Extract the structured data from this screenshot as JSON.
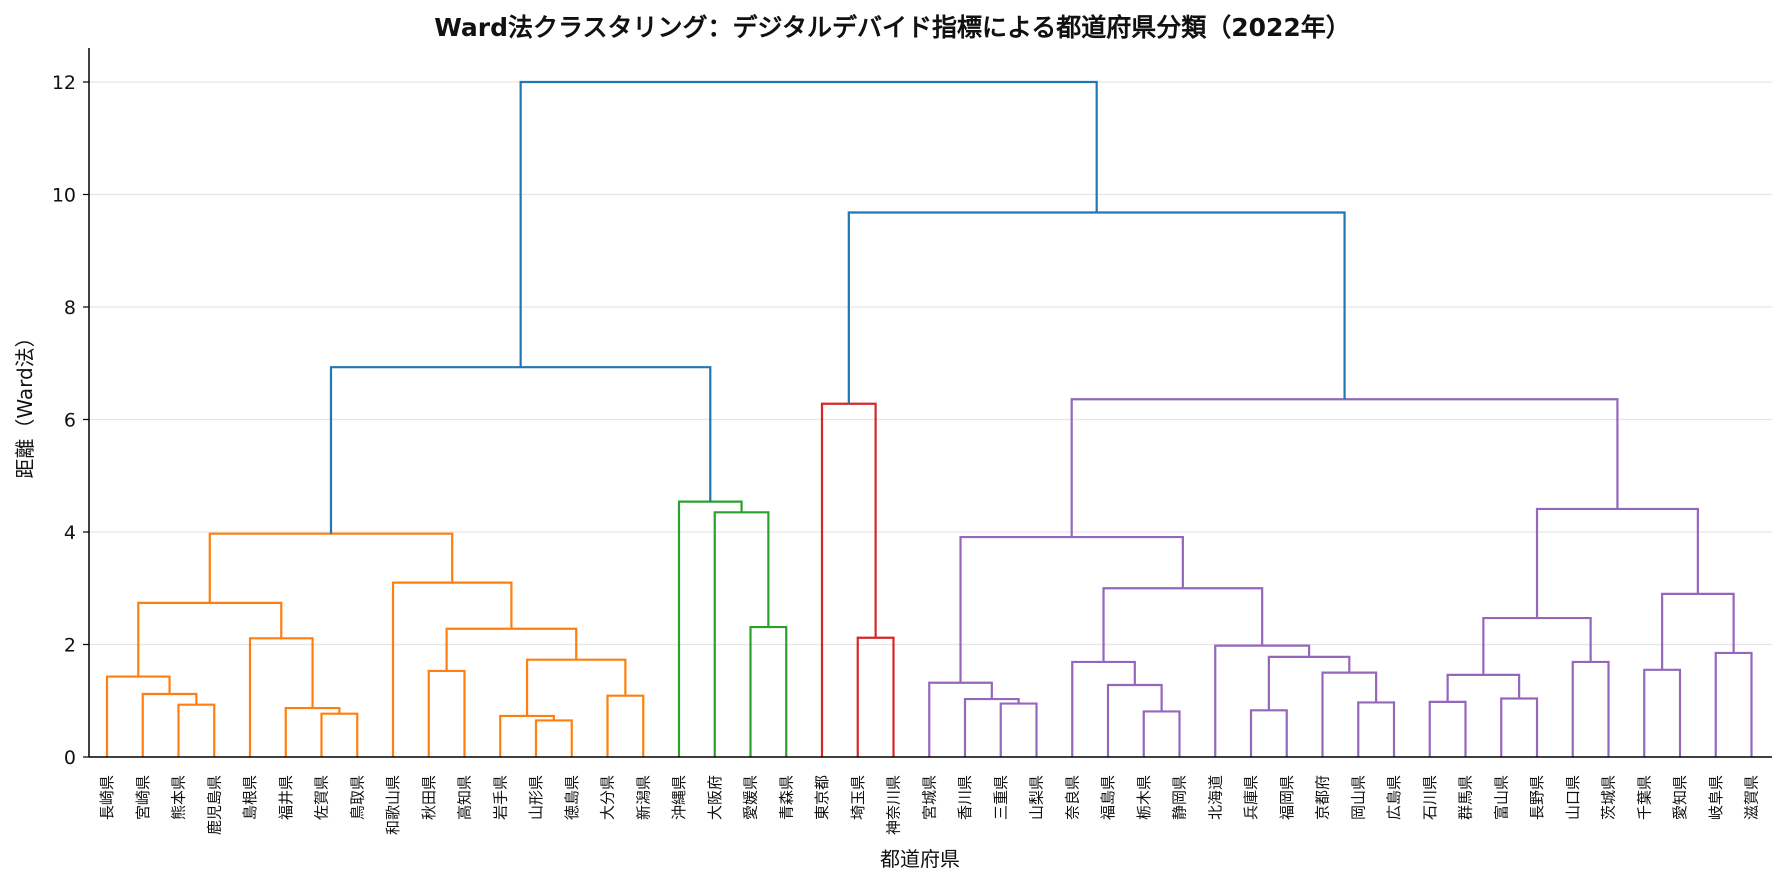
{
  "chart_data": {
    "type": "dendrogram",
    "title": "Ward法クラスタリング：デジタルデバイド指標による都道府県分類（2022年）",
    "xlabel": "都道府県",
    "ylabel": "距離（Ward法）",
    "ylim": [
      0,
      12.6
    ],
    "yticks": [
      0,
      2,
      4,
      6,
      8,
      10,
      12
    ],
    "grid": "horizontal",
    "leaves": [
      "長崎県",
      "宮崎県",
      "熊本県",
      "鹿児島県",
      "島根県",
      "福井県",
      "佐賀県",
      "鳥取県",
      "和歌山県",
      "秋田県",
      "高知県",
      "岩手県",
      "山形県",
      "徳島県",
      "大分県",
      "新潟県",
      "沖縄県",
      "大阪府",
      "愛媛県",
      "青森県",
      "東京都",
      "埼玉県",
      "神奈川県",
      "宮城県",
      "香川県",
      "三重県",
      "山梨県",
      "奈良県",
      "福島県",
      "栃木県",
      "静岡県",
      "北海道",
      "兵庫県",
      "福岡県",
      "京都府",
      "岡山県",
      "広島県",
      "石川県",
      "群馬県",
      "富山県",
      "長野県",
      "山口県",
      "茨城県",
      "千葉県",
      "愛知県",
      "岐阜県",
      "滋賀県"
    ],
    "merges": [
      {
        "a": 2,
        "b": 3,
        "height": 0.93,
        "color": "#ff7f0e"
      },
      {
        "a": 1,
        "b": 47,
        "height": 1.12,
        "color": "#ff7f0e"
      },
      {
        "a": 0,
        "b": 48,
        "height": 1.43,
        "color": "#ff7f0e"
      },
      {
        "a": 6,
        "b": 7,
        "height": 0.77,
        "color": "#ff7f0e"
      },
      {
        "a": 5,
        "b": 50,
        "height": 0.87,
        "color": "#ff7f0e"
      },
      {
        "a": 4,
        "b": 51,
        "height": 2.11,
        "color": "#ff7f0e"
      },
      {
        "a": 49,
        "b": 52,
        "height": 2.74,
        "color": "#ff7f0e"
      },
      {
        "a": 9,
        "b": 10,
        "height": 1.53,
        "color": "#ff7f0e"
      },
      {
        "a": 12,
        "b": 13,
        "height": 0.65,
        "color": "#ff7f0e"
      },
      {
        "a": 11,
        "b": 55,
        "height": 0.73,
        "color": "#ff7f0e"
      },
      {
        "a": 14,
        "b": 15,
        "height": 1.09,
        "color": "#ff7f0e"
      },
      {
        "a": 56,
        "b": 57,
        "height": 1.73,
        "color": "#ff7f0e"
      },
      {
        "a": 54,
        "b": 58,
        "height": 2.28,
        "color": "#ff7f0e"
      },
      {
        "a": 8,
        "b": 59,
        "height": 3.1,
        "color": "#ff7f0e"
      },
      {
        "a": 53,
        "b": 60,
        "height": 3.97,
        "color": "#ff7f0e"
      },
      {
        "a": 18,
        "b": 19,
        "height": 2.31,
        "color": "#2ca02c"
      },
      {
        "a": 17,
        "b": 62,
        "height": 4.35,
        "color": "#2ca02c"
      },
      {
        "a": 16,
        "b": 63,
        "height": 4.54,
        "color": "#2ca02c"
      },
      {
        "a": 61,
        "b": 64,
        "height": 6.93,
        "color": "#1f77b4"
      },
      {
        "a": 21,
        "b": 22,
        "height": 2.12,
        "color": "#d62728"
      },
      {
        "a": 20,
        "b": 66,
        "height": 6.28,
        "color": "#d62728"
      },
      {
        "a": 25,
        "b": 26,
        "height": 0.95,
        "color": "#9467bd"
      },
      {
        "a": 24,
        "b": 68,
        "height": 1.03,
        "color": "#9467bd"
      },
      {
        "a": 23,
        "b": 69,
        "height": 1.32,
        "color": "#9467bd"
      },
      {
        "a": 29,
        "b": 30,
        "height": 0.81,
        "color": "#9467bd"
      },
      {
        "a": 28,
        "b": 71,
        "height": 1.28,
        "color": "#9467bd"
      },
      {
        "a": 27,
        "b": 72,
        "height": 1.69,
        "color": "#9467bd"
      },
      {
        "a": 32,
        "b": 33,
        "height": 0.83,
        "color": "#9467bd"
      },
      {
        "a": 35,
        "b": 36,
        "height": 0.97,
        "color": "#9467bd"
      },
      {
        "a": 34,
        "b": 75,
        "height": 1.5,
        "color": "#9467bd"
      },
      {
        "a": 74,
        "b": 76,
        "height": 1.78,
        "color": "#9467bd"
      },
      {
        "a": 31,
        "b": 77,
        "height": 1.98,
        "color": "#9467bd"
      },
      {
        "a": 73,
        "b": 78,
        "height": 3.0,
        "color": "#9467bd"
      },
      {
        "a": 70,
        "b": 79,
        "height": 3.91,
        "color": "#9467bd"
      },
      {
        "a": 37,
        "b": 38,
        "height": 0.98,
        "color": "#9467bd"
      },
      {
        "a": 39,
        "b": 40,
        "height": 1.04,
        "color": "#9467bd"
      },
      {
        "a": 81,
        "b": 82,
        "height": 1.46,
        "color": "#9467bd"
      },
      {
        "a": 41,
        "b": 42,
        "height": 1.69,
        "color": "#9467bd"
      },
      {
        "a": 83,
        "b": 84,
        "height": 2.47,
        "color": "#9467bd"
      },
      {
        "a": 43,
        "b": 44,
        "height": 1.55,
        "color": "#9467bd"
      },
      {
        "a": 45,
        "b": 46,
        "height": 1.85,
        "color": "#9467bd"
      },
      {
        "a": 86,
        "b": 87,
        "height": 2.9,
        "color": "#9467bd"
      },
      {
        "a": 85,
        "b": 88,
        "height": 4.41,
        "color": "#9467bd"
      },
      {
        "a": 80,
        "b": 89,
        "height": 6.36,
        "color": "#9467bd"
      },
      {
        "a": 67,
        "b": 90,
        "height": 9.68,
        "color": "#1f77b4"
      },
      {
        "a": 65,
        "b": 91,
        "height": 12.0,
        "color": "#1f77b4"
      }
    ]
  }
}
